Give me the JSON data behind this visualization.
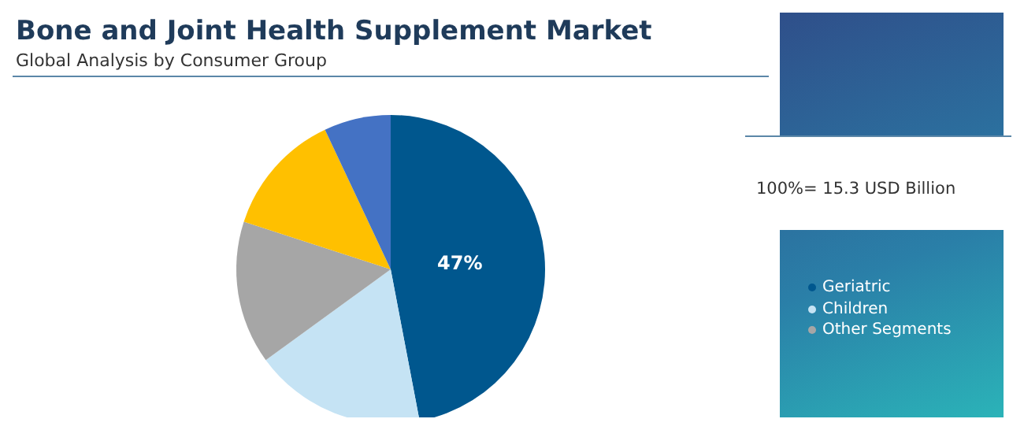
{
  "chart_data": {
    "type": "pie",
    "title": "Bone and Joint Health Supplement Market",
    "subtitle": "Global Analysis by Consumer Group",
    "categories": [
      "Geriatric",
      "Children",
      "Other Segments",
      null,
      null
    ],
    "values": [
      47,
      18,
      15,
      13,
      7
    ],
    "colors": [
      "#00578e",
      "#c5e3f4",
      "#a6a6a6",
      "#ffc000",
      "#4472c4"
    ],
    "value_labels": [
      "47%",
      null,
      null,
      null,
      null
    ],
    "legend": "right",
    "annotations": [
      "100%= 15.3 USD Billion"
    ]
  }
}
